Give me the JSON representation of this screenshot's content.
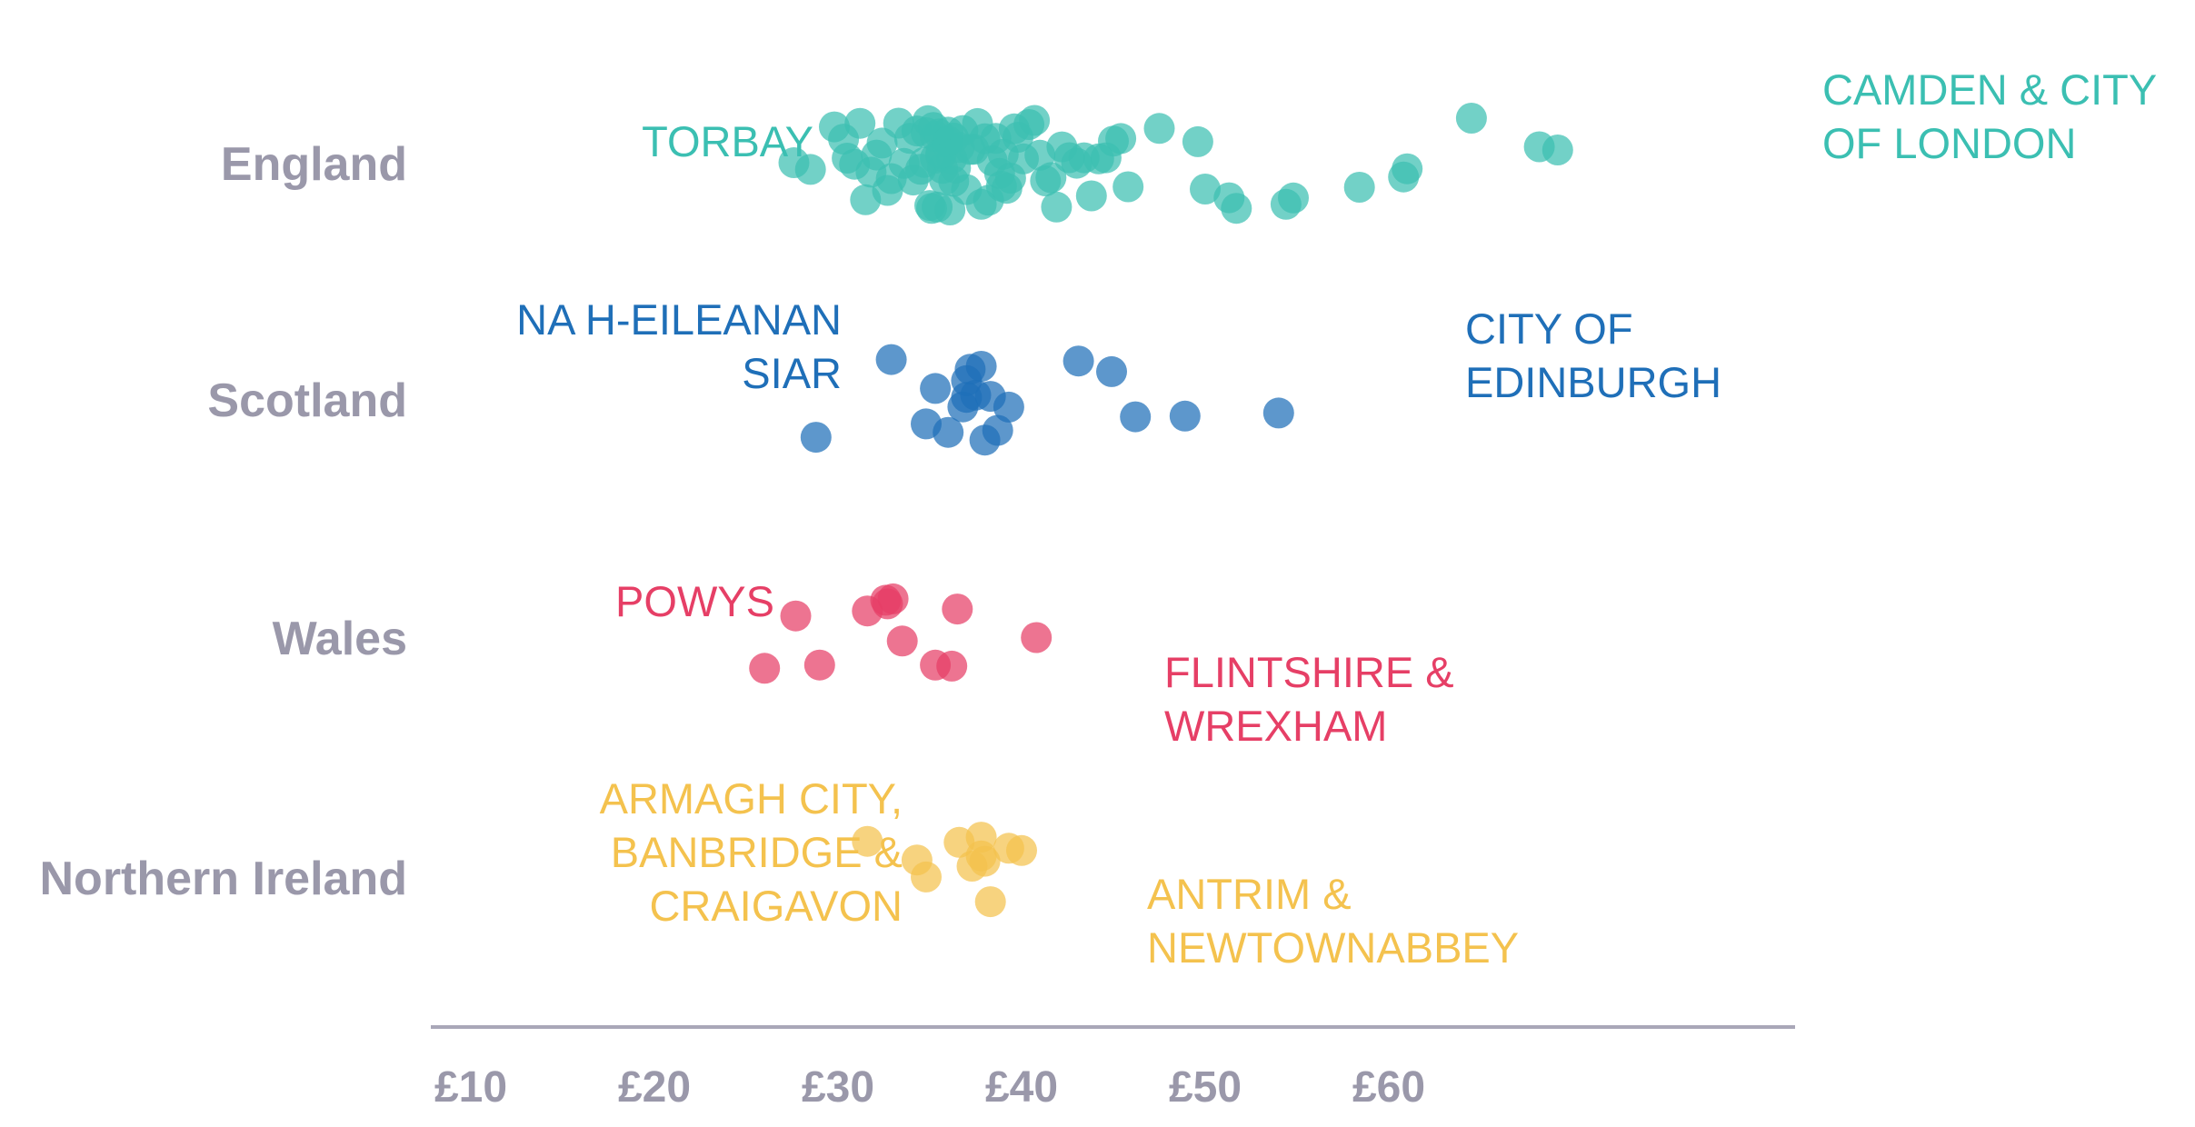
{
  "chart_data": {
    "type": "scatter",
    "title": "",
    "xlabel": "",
    "ylabel": "",
    "xlim": [
      10,
      70
    ],
    "x_ticks": [
      10,
      20,
      30,
      40,
      50,
      60
    ],
    "x_tick_labels": [
      "£10",
      "£20",
      "£30",
      "£40",
      "£50",
      "£60"
    ],
    "grid": false,
    "legend": "none",
    "categories": [
      "England",
      "Scotland",
      "Wales",
      "Northern Ireland"
    ],
    "series": [
      {
        "category": "England",
        "color": "#3bbfb2",
        "values": [
          27.6,
          28.5,
          29.8,
          30.3,
          30.5,
          30.9,
          31.2,
          31.5,
          31.8,
          32.1,
          32.4,
          32.7,
          32.9,
          33.3,
          33.6,
          33.9,
          34.1,
          34.3,
          34.5,
          34.7,
          34.8,
          34.9,
          35.0,
          35.1,
          35.2,
          35.3,
          35.4,
          35.5,
          35.6,
          35.7,
          35.8,
          35.9,
          36.0,
          36.1,
          36.2,
          36.3,
          36.4,
          36.6,
          36.8,
          37.0,
          37.2,
          37.4,
          37.6,
          37.8,
          38.0,
          38.2,
          38.4,
          38.6,
          38.8,
          39.0,
          39.2,
          39.4,
          39.6,
          39.8,
          40.1,
          40.4,
          40.7,
          41.0,
          41.3,
          41.6,
          41.9,
          42.2,
          42.6,
          43.0,
          43.4,
          43.8,
          44.2,
          44.6,
          45.0,
          45.4,
          45.8,
          47.5,
          49.6,
          50.0,
          51.3,
          51.7,
          54.4,
          54.8,
          58.4,
          60.8,
          61.0,
          64.5,
          68.2,
          69.2,
          35.3,
          35.6,
          36.3,
          38.9,
          36.0
        ]
      },
      {
        "category": "Scotland",
        "color": "#1f6fb8",
        "values": [
          28.8,
          32.9,
          35.3,
          36.8,
          37.5,
          37.8,
          38.0,
          38.3,
          38.7,
          39.3,
          37.0,
          37.2,
          34.8,
          36.0,
          37.0,
          43.1,
          44.9,
          46.2,
          48.9,
          54.0
        ]
      },
      {
        "category": "Wales",
        "color": "#e63f66",
        "values": [
          26.0,
          27.7,
          29.0,
          31.6,
          32.6,
          32.7,
          33.0,
          33.5,
          35.3,
          36.2,
          36.5,
          40.8
        ]
      },
      {
        "category": "Northern Ireland",
        "color": "#f4c24e",
        "values": [
          31.6,
          34.3,
          34.8,
          36.6,
          37.3,
          37.8,
          38.0,
          38.3,
          39.3,
          40.0,
          37.8
        ]
      }
    ],
    "annotations": [
      {
        "category": "England",
        "lines": [
          "TORBAY"
        ]
      },
      {
        "category": "England",
        "lines": [
          "CAMDEN & CITY",
          "OF LONDON"
        ]
      },
      {
        "category": "Scotland",
        "lines": [
          "NA H-EILEANAN",
          "SIAR"
        ]
      },
      {
        "category": "Scotland",
        "lines": [
          "CITY OF",
          "EDINBURGH"
        ]
      },
      {
        "category": "Wales",
        "lines": [
          "POWYS"
        ]
      },
      {
        "category": "Wales",
        "lines": [
          "FLINTSHIRE &",
          "WREXHAM"
        ]
      },
      {
        "category": "Northern Ireland",
        "lines": [
          "ARMAGH CITY,",
          "BANBRIDGE &",
          "CRAIGAVON"
        ]
      },
      {
        "category": "Northern Ireland",
        "lines": [
          "ANTRIM &",
          "NEWTOWNABBEY"
        ]
      }
    ],
    "axis_color": "#a9a7b8"
  }
}
